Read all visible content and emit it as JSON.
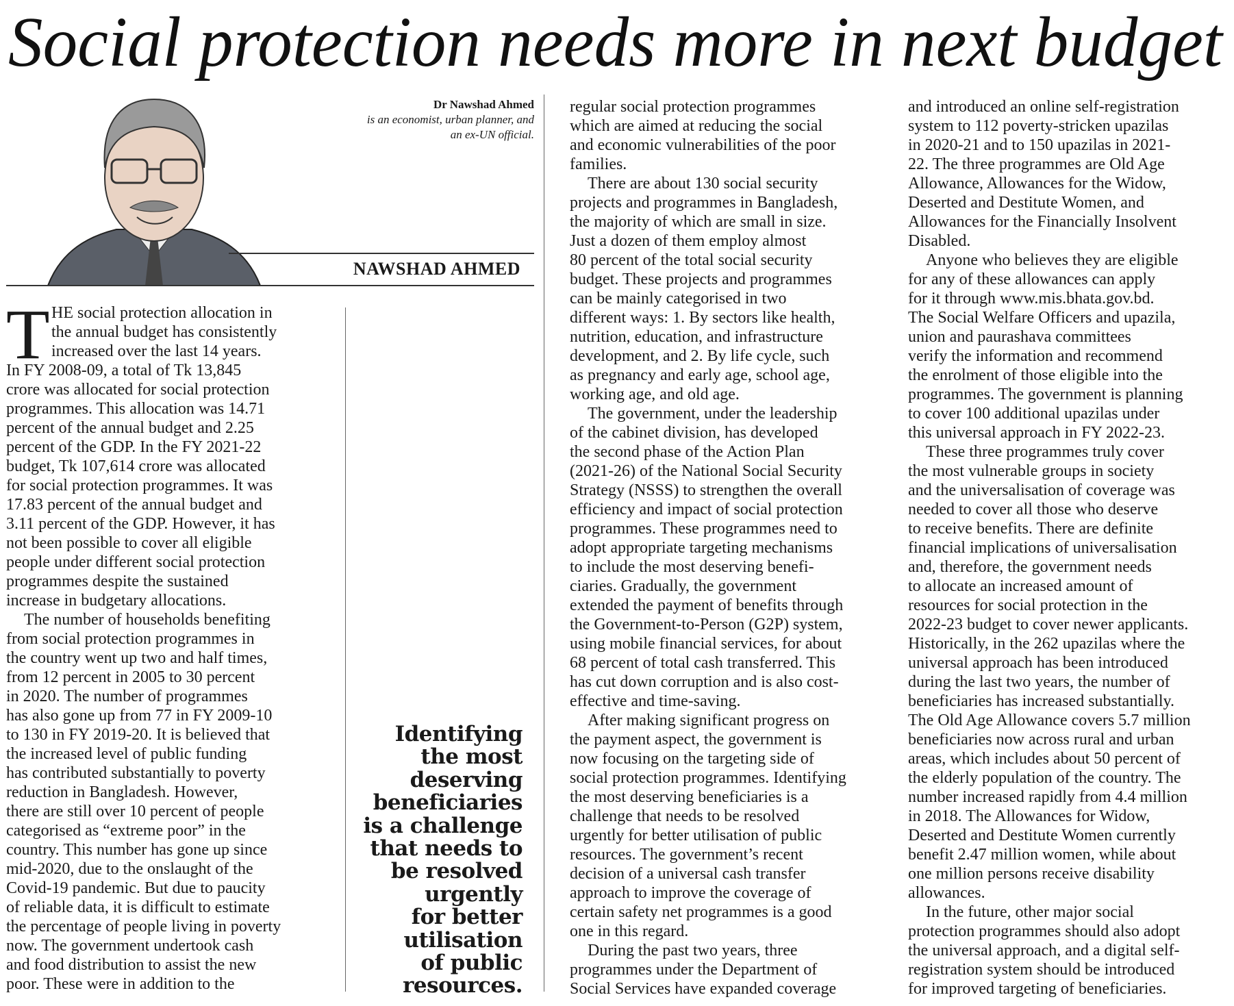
{
  "headline": "Social protection needs more in next budget",
  "author_note": {
    "name": "Dr Nawshad Ahmed",
    "bio_lines": [
      "is an economist, urban planner, and",
      "an ex-UN official."
    ]
  },
  "byline": "NAWSHAD AHMED",
  "pull_quote": [
    "Identifying",
    "the most",
    "deserving",
    "beneficiaries",
    "is a challenge",
    "that needs to",
    "be resolved",
    "urgently",
    "for better",
    "utilisation",
    "of public",
    "resources."
  ],
  "columns": [
    {
      "drop_cap": "T",
      "paragraphs": [
        {
          "lines": [
            "HE social protection allocation in",
            "the annual budget has consistently",
            "increased over the last 14 years.",
            "In FY 2008-09, a total of Tk 13,845",
            "crore was allocated for social protection",
            "programmes. This allocation was 14.71",
            "percent of the annual budget and 2.25",
            "percent of the GDP. In the FY 2021-22",
            "budget, Tk 107,614 crore was allocated",
            "for social protection programmes. It was",
            "17.83 percent of the annual budget and",
            "3.11 percent of the GDP. However, it has",
            "not been possible to cover all eligible",
            "people under different social protection",
            "programmes despite the sustained",
            "increase in budgetary allocations."
          ]
        },
        {
          "lines": [
            "The number of households benefiting",
            "from social protection programmes in",
            "the country went up two and half times,",
            "from 12 percent in 2005 to 30 percent",
            "in 2020. The number of programmes",
            "has also gone up from 77 in FY 2009-10",
            "to 130 in FY 2019-20. It is believed that",
            "the increased level of public funding",
            "has contributed substantially to poverty",
            "reduction in Bangladesh. However,",
            "there are still over 10 percent of people",
            "categorised as “extreme poor” in the",
            "country. This number has gone up since",
            "mid-2020, due to the onslaught of the",
            "Covid-19 pandemic. But due to paucity",
            "of reliable data, it is difficult to estimate",
            "the percentage of people living in poverty",
            "now. The government undertook cash",
            "and food distribution to assist the new",
            "poor. These were in addition to the"
          ]
        }
      ]
    },
    {
      "paragraphs": [
        {
          "lines": [
            "regular social protection programmes",
            "which are aimed at reducing the social",
            "and economic vulnerabilities of the poor",
            "families."
          ]
        },
        {
          "lines": [
            "There are about 130 social security",
            "projects and programmes in Bangladesh,",
            "the majority of which are small in size.",
            "Just a dozen of them employ almost",
            "80 percent of the total social security",
            "budget. These projects and programmes",
            "can be mainly categorised in two",
            "different ways: 1. By sectors like health,",
            "nutrition, education, and infrastructure",
            "development, and 2. By life cycle, such",
            "as pregnancy and early age, school age,",
            "working age, and old age."
          ]
        },
        {
          "lines": [
            "The government, under the leadership",
            "of the cabinet division, has developed",
            "the second phase of the Action Plan",
            "(2021-26) of the National Social Security",
            "Strategy (NSSS) to strengthen the overall",
            "efficiency and impact of social protection",
            "programmes. These programmes need to",
            "adopt appropriate targeting mechanisms",
            "to include the most deserving benefi-",
            "ciaries. Gradually, the government",
            "extended the payment of benefits through",
            "the Government-to-Person (G2P) system,",
            "using mobile financial services, for about",
            "68 percent of total cash transferred. This",
            "has cut down corruption and is also cost-",
            "effective and time-saving."
          ]
        },
        {
          "lines": [
            "After making significant progress on",
            "the payment aspect, the government is",
            "now focusing on the targeting side of",
            "social protection programmes. Identifying",
            "the most deserving beneficiaries is a",
            "challenge that needs to be resolved",
            "urgently for better utilisation of public",
            "resources. The government’s recent",
            "decision of a universal cash transfer",
            "approach to improve the coverage of",
            "certain safety net programmes is a good",
            "one in this regard."
          ]
        },
        {
          "lines": [
            "During the past two years, three",
            "programmes under the Department of",
            "Social Services have expanded coverage"
          ]
        }
      ]
    },
    {
      "paragraphs": [
        {
          "lines": [
            "and introduced an online self-registration",
            "system to 112 poverty-stricken upazilas",
            "in 2020-21 and to 150 upazilas in 2021-",
            "22. The three programmes are Old Age",
            "Allowance, Allowances for the Widow,",
            "Deserted and Destitute Women, and",
            "Allowances for the Financially Insolvent",
            "Disabled."
          ]
        },
        {
          "lines": [
            "Anyone who believes they are eligible",
            "for any of these allowances can apply",
            "for it through www.mis.bhata.gov.bd.",
            "The Social Welfare Officers and upazila,",
            "union and paurashava committees",
            "verify the information and recommend",
            "the enrolment of those eligible into the",
            "programmes. The government is planning",
            "to cover 100 additional upazilas under",
            "this universal approach in FY 2022-23."
          ]
        },
        {
          "lines": [
            "These three programmes truly cover",
            "the most vulnerable groups in society",
            "and the universalisation of coverage was",
            "needed to cover all those who deserve",
            "to receive benefits. There are definite",
            "financial implications of universalisation",
            "and, therefore, the government needs",
            "to allocate an increased amount of",
            "resources for social protection in the",
            "2022-23 budget to cover newer applicants.",
            "Historically, in the 262 upazilas where the",
            "universal approach has been introduced",
            "during the last two years, the number of",
            "beneficiaries has increased substantially.",
            "The Old Age Allowance covers 5.7 million",
            "beneficiaries now across rural and urban",
            "areas, which includes about 50 percent of",
            "the elderly population of the country. The",
            "number increased rapidly from 4.4 million",
            "in 2018. The Allowances for Widow,",
            "Deserted and Destitute Women currently",
            "benefit 2.47 million women, while about",
            "one million persons receive disability",
            "allowances."
          ]
        },
        {
          "lines": [
            "In the future, other major social",
            "protection programmes should also adopt",
            "the universal approach, and a digital self-",
            "registration system should be introduced",
            "for improved targeting of beneficiaries."
          ]
        }
      ]
    }
  ]
}
